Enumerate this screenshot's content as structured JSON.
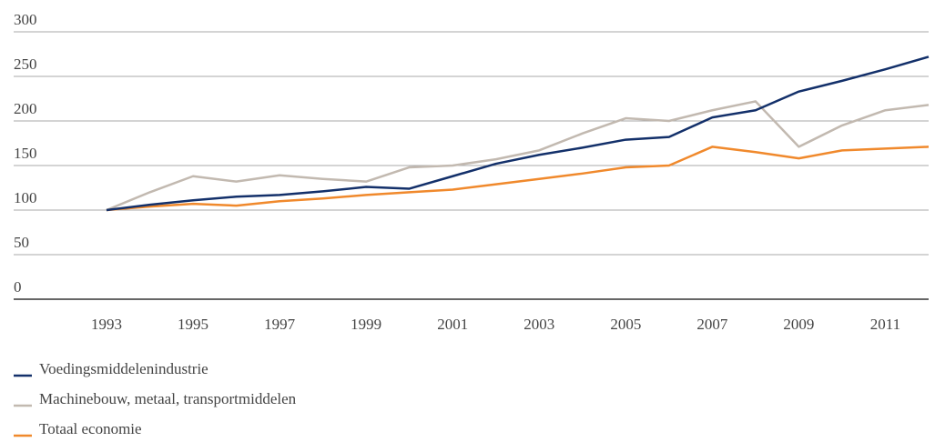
{
  "chart_data": {
    "type": "line",
    "x": [
      1993,
      1994,
      1995,
      1996,
      1997,
      1998,
      1999,
      2000,
      2001,
      2002,
      2003,
      2004,
      2005,
      2006,
      2007,
      2008,
      2009,
      2010,
      2011,
      2012
    ],
    "series": [
      {
        "name": "Voedingsmiddelenindustrie",
        "color": "#13306a",
        "values": [
          100,
          106,
          111,
          115,
          117,
          121,
          126,
          124,
          138,
          152,
          162,
          170,
          179,
          182,
          204,
          212,
          233,
          245,
          258,
          272
        ]
      },
      {
        "name": "Machinebouw, metaal, transportmiddelen",
        "color": "#c2b9b0",
        "values": [
          100,
          120,
          138,
          132,
          139,
          135,
          132,
          148,
          150,
          157,
          167,
          186,
          203,
          200,
          212,
          222,
          171,
          195,
          212,
          218
        ]
      },
      {
        "name": "Totaal economie",
        "color": "#f0892c",
        "values": [
          100,
          104,
          107,
          105,
          110,
          113,
          117,
          120,
          123,
          129,
          135,
          141,
          148,
          150,
          171,
          165,
          158,
          167,
          169,
          171
        ]
      }
    ],
    "xlim": [
      1993,
      2012
    ],
    "xticks": [
      1993,
      1995,
      1997,
      1999,
      2001,
      2003,
      2005,
      2007,
      2009,
      2011
    ],
    "ylim": [
      0,
      300
    ],
    "yticks": [
      0,
      50,
      100,
      150,
      200,
      250,
      300
    ],
    "grid": true
  }
}
